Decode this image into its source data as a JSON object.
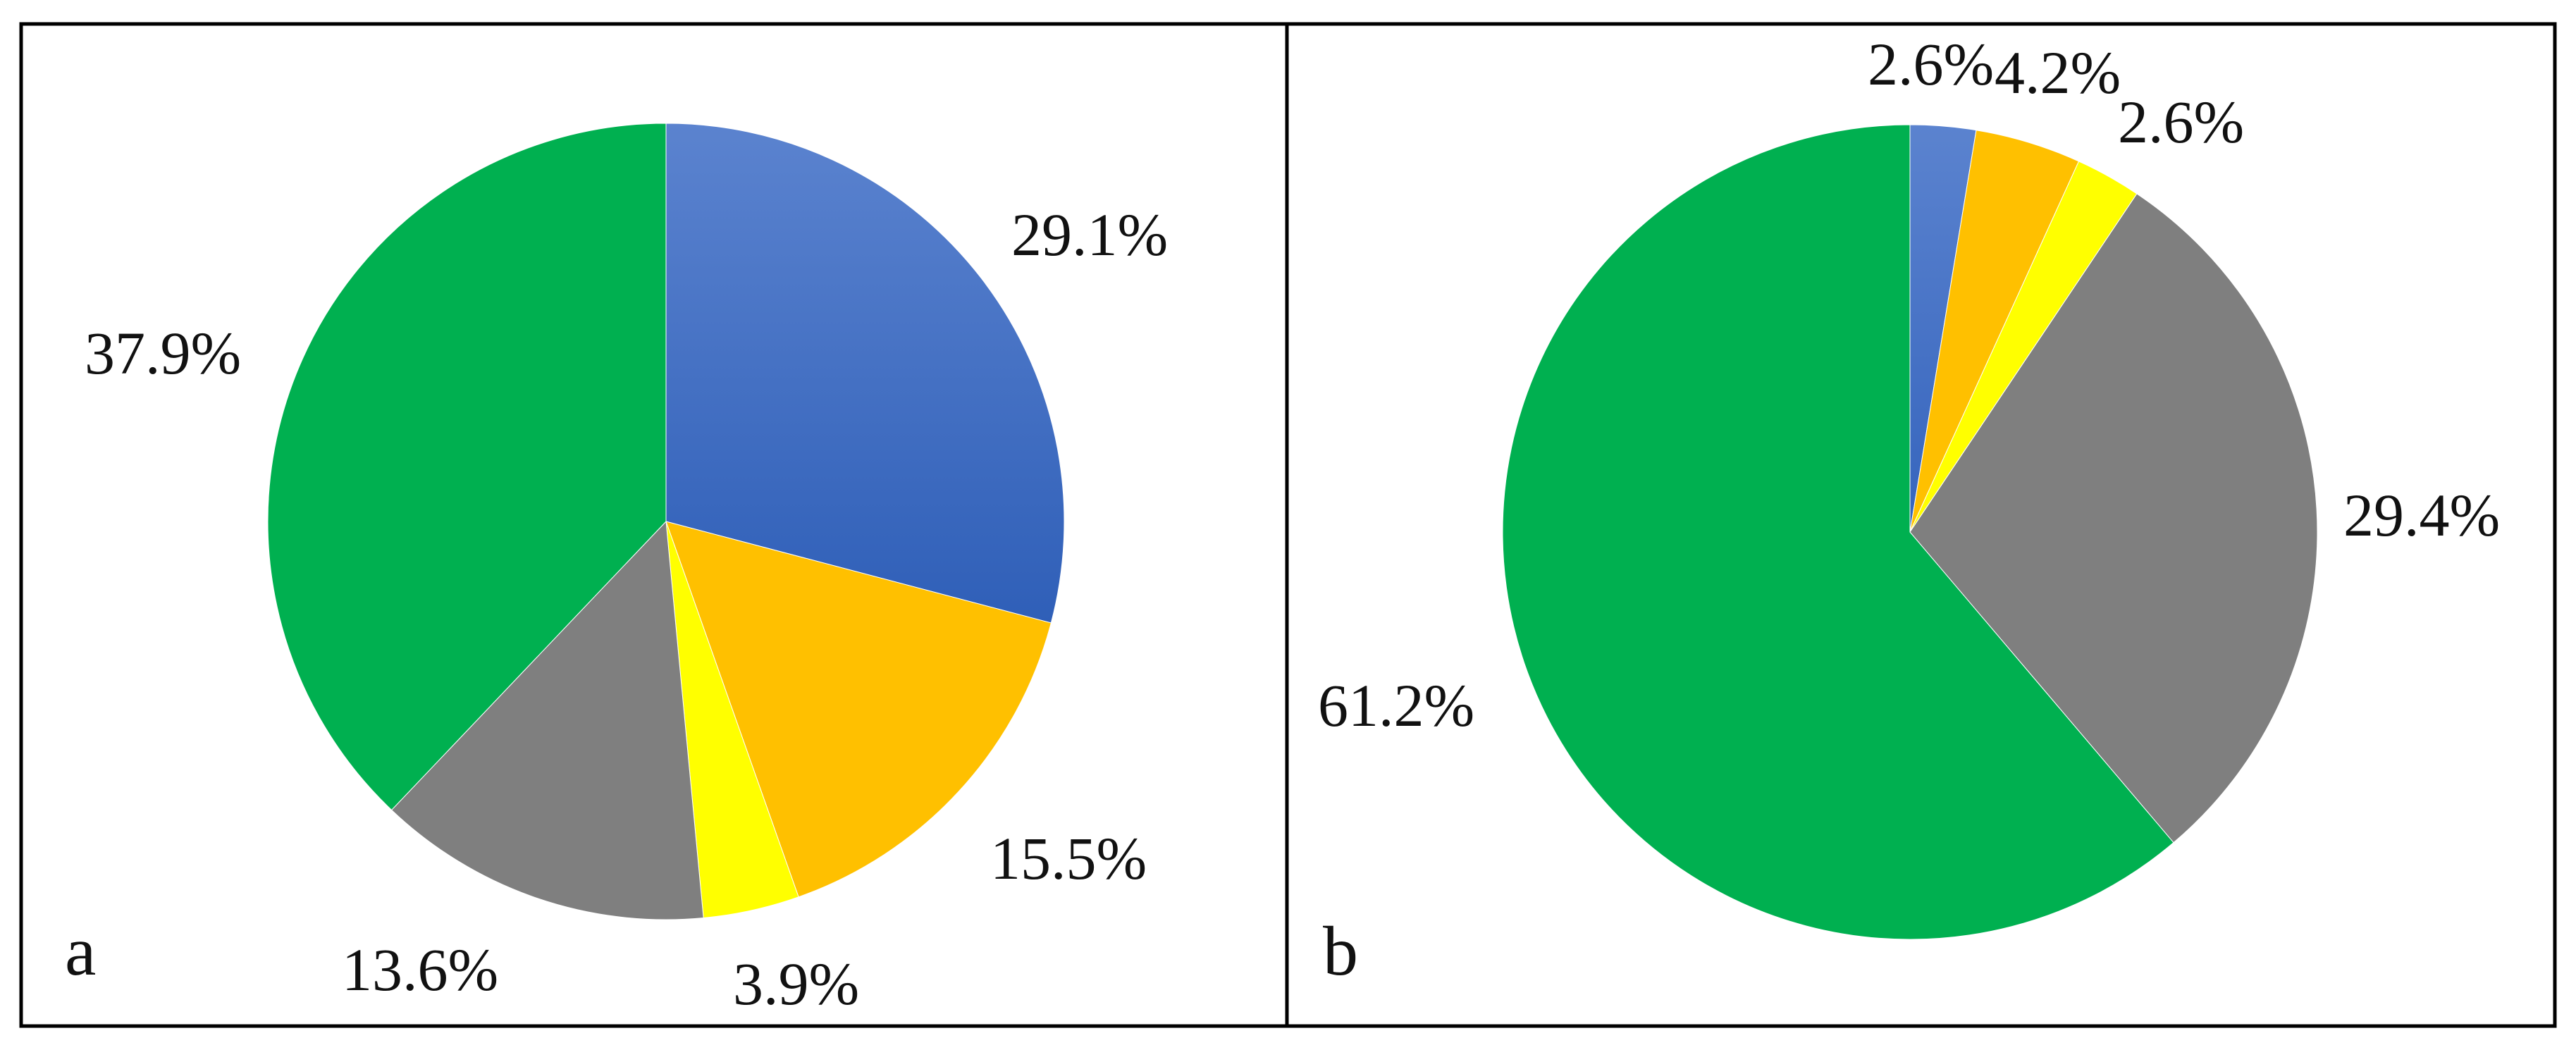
{
  "chart_data": [
    {
      "type": "pie",
      "panel_label": "a",
      "start": "12 o'clock",
      "direction": "clockwise",
      "slices": [
        {
          "label": "29.1%",
          "value": 29.1,
          "color": "#4472C4"
        },
        {
          "label": "15.5%",
          "value": 15.5,
          "color": "#FFC000"
        },
        {
          "label": "3.9%",
          "value": 3.9,
          "color": "#FFFF00"
        },
        {
          "label": "13.6%",
          "value": 13.6,
          "color": "#7F7F7F"
        },
        {
          "label": "37.9%",
          "value": 37.9,
          "color": "#00B050"
        }
      ]
    },
    {
      "type": "pie",
      "panel_label": "b",
      "start": "12 o'clock",
      "direction": "clockwise",
      "slices": [
        {
          "label": "2.6%",
          "value": 2.6,
          "color": "#4472C4"
        },
        {
          "label": "4.2%",
          "value": 4.2,
          "color": "#FFC000"
        },
        {
          "label": "2.6%",
          "value": 2.6,
          "color": "#FFFF00"
        },
        {
          "label": "29.4%",
          "value": 29.4,
          "color": "#7F7F7F"
        },
        {
          "label": "61.2%",
          "value": 61.2,
          "color": "#00B050"
        }
      ]
    }
  ]
}
